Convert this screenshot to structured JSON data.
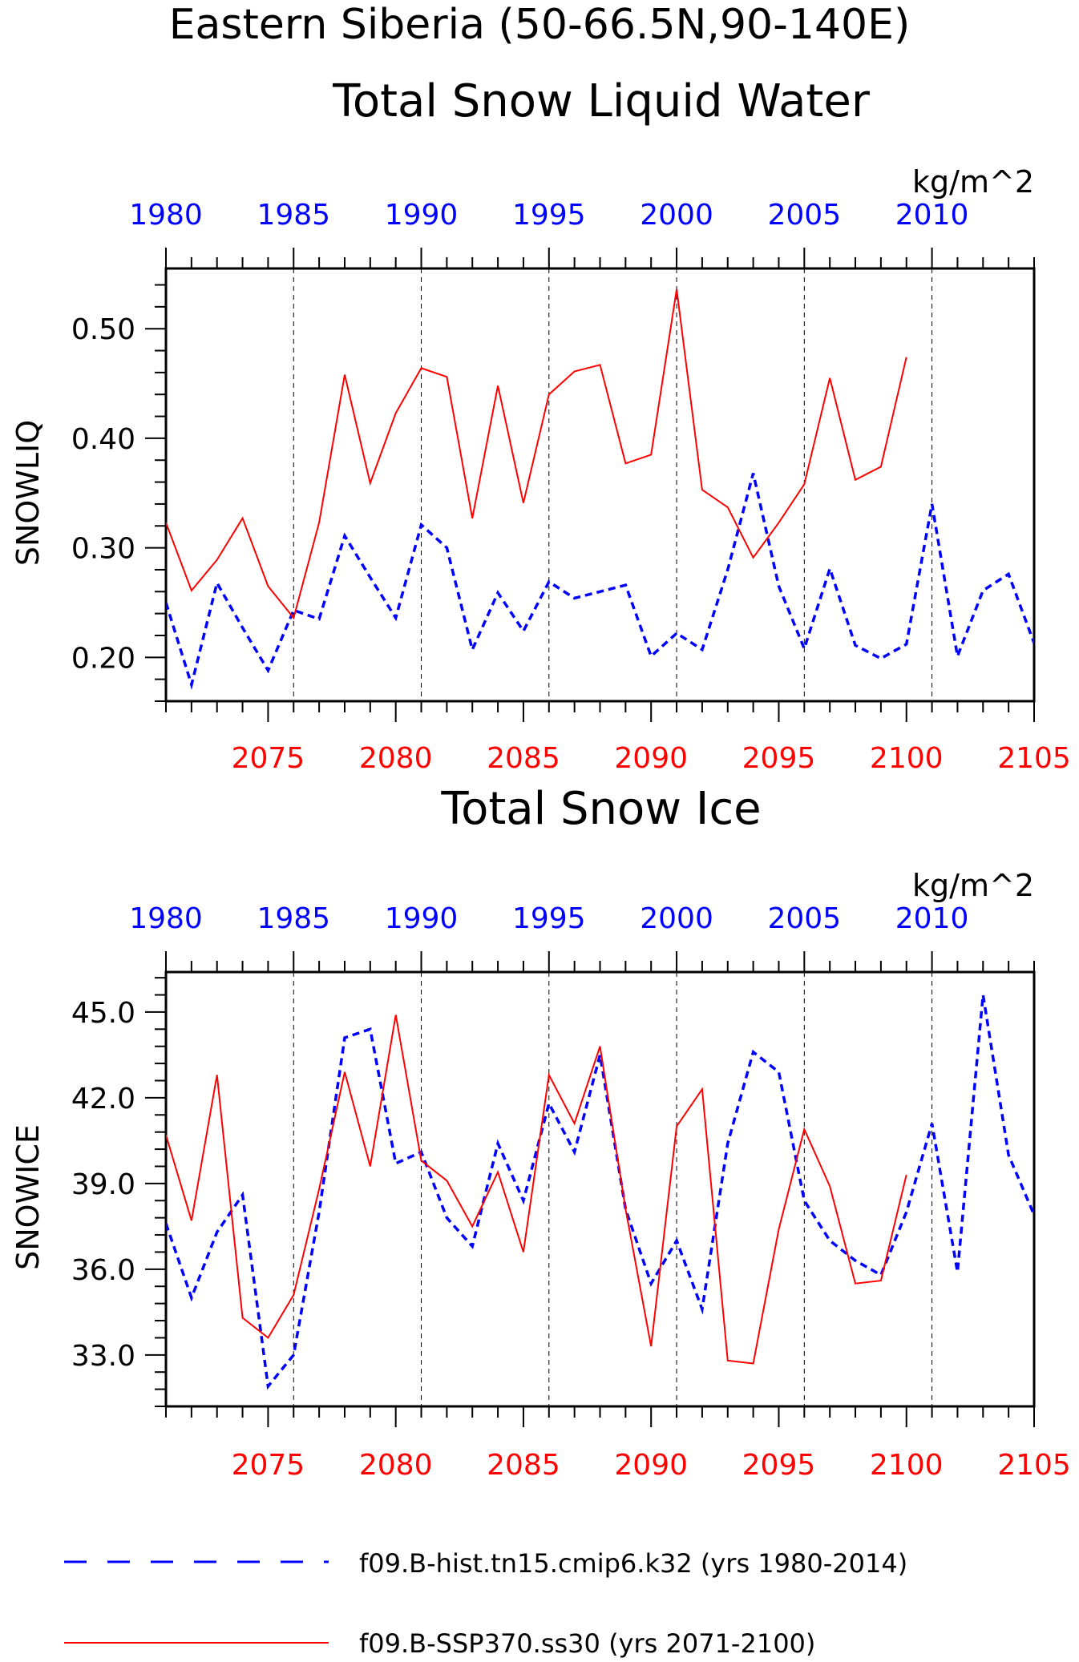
{
  "figure": {
    "title": "Eastern Siberia (50-66.5N,90-140E)",
    "legend": [
      {
        "label": "f09.B-hist.tn15.cmip6.k32 (yrs 1980-2014)",
        "color": "#0000ff",
        "style": "dashed"
      },
      {
        "label": "f09.B-SSP370.ss30 (yrs 2071-2100)",
        "color": "#ff0000",
        "style": "solid"
      }
    ]
  },
  "chart_data": [
    {
      "type": "line",
      "title": "Total Snow Liquid Water",
      "units": "kg/m^2",
      "ylabel": "SNOWLIQ",
      "ylim": [
        0.16,
        0.555
      ],
      "yticks": [
        0.2,
        0.3,
        0.4,
        0.5
      ],
      "yticklabels": [
        "0.20",
        "0.30",
        "0.40",
        "0.50"
      ],
      "yminor": 0.02,
      "grid": "vertical dashed at top/bottom major ticks",
      "top_axis": {
        "label_color": "#0000ff",
        "lim": [
          1980,
          2014
        ],
        "ticks": [
          1980,
          1985,
          1990,
          1995,
          2000,
          2005,
          2010
        ],
        "ticklabels": [
          "1980",
          "1985",
          "1990",
          "1995",
          "2000",
          "2005",
          "2010"
        ]
      },
      "bottom_axis": {
        "label_color": "#ff0000",
        "lim": [
          2071,
          2105
        ],
        "ticks": [
          2075,
          2080,
          2085,
          2090,
          2095,
          2100,
          2105
        ],
        "ticklabels": [
          "2075",
          "2080",
          "2085",
          "2090",
          "2095",
          "2100",
          "2105"
        ]
      },
      "series": [
        {
          "name": "f09.B-hist.tn15.cmip6.k32 (yrs 1980-2014)",
          "axis": "top",
          "color": "#0000ff",
          "style": "dashed",
          "x": [
            1980,
            1981,
            1982,
            1983,
            1984,
            1985,
            1986,
            1987,
            1988,
            1989,
            1990,
            1991,
            1992,
            1993,
            1994,
            1995,
            1996,
            1997,
            1998,
            1999,
            2000,
            2001,
            2002,
            2003,
            2004,
            2005,
            2006,
            2007,
            2008,
            2009,
            2010,
            2011,
            2012,
            2013,
            2014
          ],
          "values": [
            0.25,
            0.175,
            0.268,
            0.227,
            0.188,
            0.243,
            0.235,
            0.311,
            0.273,
            0.236,
            0.321,
            0.3,
            0.207,
            0.259,
            0.224,
            0.269,
            0.254,
            0.26,
            0.266,
            0.201,
            0.222,
            0.207,
            0.28,
            0.368,
            0.265,
            0.208,
            0.281,
            0.211,
            0.199,
            0.212,
            0.34,
            0.201,
            0.261,
            0.276,
            0.213
          ]
        },
        {
          "name": "f09.B-SSP370.ss30 (yrs 2071-2100)",
          "axis": "bottom",
          "color": "#ff0000",
          "style": "solid",
          "x": [
            2071,
            2072,
            2073,
            2074,
            2075,
            2076,
            2077,
            2078,
            2079,
            2080,
            2081,
            2082,
            2083,
            2084,
            2085,
            2086,
            2087,
            2088,
            2089,
            2090,
            2091,
            2092,
            2093,
            2094,
            2095,
            2096,
            2097,
            2098,
            2099,
            2100
          ],
          "values": [
            0.323,
            0.261,
            0.289,
            0.327,
            0.265,
            0.236,
            0.323,
            0.458,
            0.359,
            0.423,
            0.464,
            0.456,
            0.327,
            0.448,
            0.341,
            0.44,
            0.461,
            0.467,
            0.377,
            0.385,
            0.536,
            0.353,
            0.337,
            0.291,
            0.323,
            0.358,
            0.455,
            0.362,
            0.374,
            0.474
          ]
        }
      ]
    },
    {
      "type": "line",
      "title": "Total Snow Ice",
      "units": "kg/m^2",
      "ylabel": "SNOWICE",
      "ylim": [
        31.2,
        46.4
      ],
      "yticks": [
        33,
        36,
        39,
        42,
        45
      ],
      "yticklabels": [
        "33.0",
        "36.0",
        "39.0",
        "42.0",
        "45.0"
      ],
      "yminor": 0.6,
      "grid": "vertical dashed at top/bottom major ticks",
      "top_axis": {
        "label_color": "#0000ff",
        "lim": [
          1980,
          2014
        ],
        "ticks": [
          1980,
          1985,
          1990,
          1995,
          2000,
          2005,
          2010
        ],
        "ticklabels": [
          "1980",
          "1985",
          "1990",
          "1995",
          "2000",
          "2005",
          "2010"
        ]
      },
      "bottom_axis": {
        "label_color": "#ff0000",
        "lim": [
          2071,
          2105
        ],
        "ticks": [
          2075,
          2080,
          2085,
          2090,
          2095,
          2100,
          2105
        ],
        "ticklabels": [
          "2075",
          "2080",
          "2085",
          "2090",
          "2095",
          "2100",
          "2105"
        ]
      },
      "series": [
        {
          "name": "f09.B-hist.tn15.cmip6.k32 (yrs 1980-2014)",
          "axis": "top",
          "color": "#0000ff",
          "style": "dashed",
          "x": [
            1980,
            1981,
            1982,
            1983,
            1984,
            1985,
            1986,
            1987,
            1988,
            1989,
            1990,
            1991,
            1992,
            1993,
            1994,
            1995,
            1996,
            1997,
            1998,
            1999,
            2000,
            2001,
            2002,
            2003,
            2004,
            2005,
            2006,
            2007,
            2008,
            2009,
            2010,
            2011,
            2012,
            2013,
            2014
          ],
          "values": [
            37.6,
            35.0,
            37.3,
            38.6,
            31.9,
            33.0,
            38.0,
            44.1,
            44.4,
            39.7,
            40.1,
            37.8,
            36.8,
            40.4,
            38.4,
            41.8,
            40.1,
            43.5,
            38.1,
            35.5,
            37.0,
            34.6,
            40.4,
            43.6,
            42.9,
            38.4,
            37.0,
            36.3,
            35.8,
            38.0,
            41.1,
            35.9,
            45.6,
            40.0,
            37.9
          ]
        },
        {
          "name": "f09.B-SSP370.ss30 (yrs 2071-2100)",
          "axis": "bottom",
          "color": "#ff0000",
          "style": "solid",
          "x": [
            2071,
            2072,
            2073,
            2074,
            2075,
            2076,
            2077,
            2078,
            2079,
            2080,
            2081,
            2082,
            2083,
            2084,
            2085,
            2086,
            2087,
            2088,
            2089,
            2090,
            2091,
            2092,
            2093,
            2094,
            2095,
            2096,
            2097,
            2098,
            2099,
            2100
          ],
          "values": [
            40.7,
            37.7,
            42.8,
            34.3,
            33.6,
            35.1,
            38.8,
            42.9,
            39.6,
            44.9,
            39.8,
            39.1,
            37.5,
            39.4,
            36.6,
            42.8,
            41.1,
            43.8,
            38.1,
            33.3,
            41.0,
            42.3,
            32.8,
            32.7,
            37.4,
            40.9,
            38.9,
            35.5,
            35.6,
            39.3
          ]
        }
      ]
    }
  ]
}
